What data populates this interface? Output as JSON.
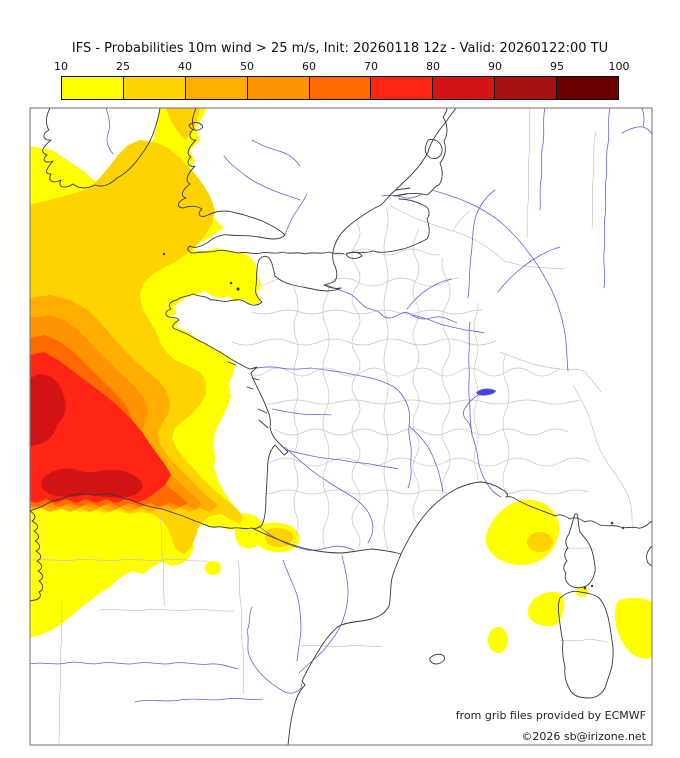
{
  "title": "IFS - Probabilities 10m wind > 25 m/s, Init: 20260118 12z - Valid: 20260122:00 TU",
  "colorbar": {
    "tick_labels": [
      "10",
      "25",
      "40",
      "50",
      "60",
      "70",
      "80",
      "90",
      "95",
      "100"
    ],
    "colors": [
      "#FFFF00",
      "#FFD300",
      "#FFAE00",
      "#FF9400",
      "#FF6B00",
      "#FF2414",
      "#D21414",
      "#A31111",
      "#6B0000"
    ]
  },
  "attribution": {
    "line1": "from grib files provided by ECMWF",
    "line2": "©2026 sb@irizone.net"
  },
  "map": {
    "colors": {
      "sea": "#FFFFFF",
      "coast": "#3a3a3c",
      "river": "#6262e8",
      "admin": "#c6c6c6",
      "frame": "#6f6f6f"
    }
  }
}
